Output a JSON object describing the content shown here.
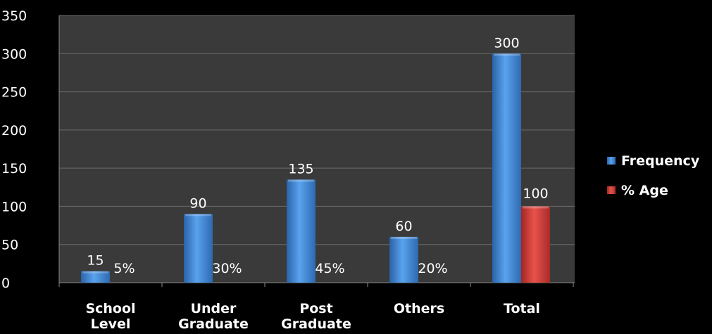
{
  "chart_data": {
    "type": "bar",
    "title": "",
    "xlabel": "",
    "ylabel": "",
    "categories": [
      [
        "School",
        "Level"
      ],
      [
        "Under",
        "Graduate"
      ],
      [
        "Post",
        "Graduate"
      ],
      [
        "Others"
      ],
      [
        "Total"
      ]
    ],
    "series": [
      {
        "name": "Frequency",
        "values": [
          15,
          90,
          135,
          60,
          300
        ],
        "labels": [
          "15",
          "90",
          "135",
          "60",
          "300"
        ],
        "color": "#4a8fd9"
      },
      {
        "name": "% Age",
        "values": [
          5,
          30,
          45,
          20,
          100
        ],
        "labels": [
          "5%",
          "30%",
          "45%",
          "20%",
          "100"
        ],
        "color": "#d9403a"
      }
    ],
    "ylim": [
      0,
      350
    ],
    "yticks": [
      0,
      50,
      100,
      150,
      200,
      250,
      300,
      350
    ],
    "grid": true,
    "legend_position": "right",
    "colors": {
      "plot_background": "#3a3a3a",
      "page_background": "#000000",
      "gridline": "#6a6a6a",
      "text": "#ffffff"
    }
  }
}
